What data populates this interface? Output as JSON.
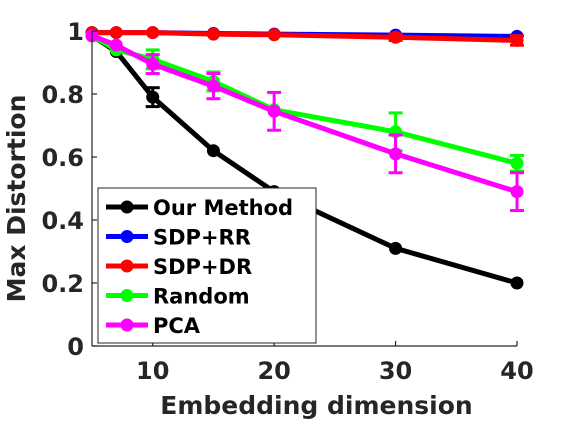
{
  "chart_data": {
    "type": "line",
    "title": "",
    "xlabel": "Embedding dimension",
    "ylabel": "Max Distortion",
    "xlim": [
      5,
      40
    ],
    "ylim": [
      0,
      1
    ],
    "xticks": [
      10,
      20,
      30,
      40
    ],
    "yticks": [
      0,
      0.2,
      0.4,
      0.6,
      0.8,
      1
    ],
    "ytick_labels": [
      "0",
      "0.2",
      "0.4",
      "0.6",
      "0.8",
      "1"
    ],
    "grid": false,
    "legend_position": "bottom-left",
    "series": [
      {
        "name": "Our Method",
        "color": "#000000",
        "x": [
          5,
          7,
          10,
          15,
          20,
          30,
          40
        ],
        "y": [
          0.985,
          0.935,
          0.79,
          0.62,
          0.49,
          0.31,
          0.2
        ],
        "err": [
          0,
          0,
          0.03,
          0,
          0,
          0,
          0
        ]
      },
      {
        "name": "SDP+RR",
        "color": "#0000ff",
        "x": [
          5,
          7,
          10,
          15,
          20,
          30,
          40
        ],
        "y": [
          0.995,
          0.995,
          0.995,
          0.992,
          0.99,
          0.987,
          0.983
        ],
        "err": [
          0,
          0,
          0,
          0,
          0,
          0,
          0
        ]
      },
      {
        "name": "SDP+DR",
        "color": "#ff0000",
        "x": [
          5,
          7,
          10,
          15,
          20,
          30,
          40
        ],
        "y": [
          0.995,
          0.995,
          0.995,
          0.99,
          0.988,
          0.98,
          0.97
        ],
        "err": [
          0,
          0,
          0,
          0,
          0,
          0.01,
          0.015
        ]
      },
      {
        "name": "Random",
        "color": "#00ff00",
        "x": [
          5,
          7,
          10,
          15,
          20,
          30,
          40
        ],
        "y": [
          0.985,
          0.94,
          0.91,
          0.84,
          0.75,
          0.68,
          0.58
        ],
        "err": [
          0,
          0,
          0.03,
          0.03,
          0,
          0.06,
          0.025
        ]
      },
      {
        "name": "PCA",
        "color": "#ff00ff",
        "x": [
          5,
          7,
          10,
          15,
          20,
          30,
          40
        ],
        "y": [
          0.985,
          0.955,
          0.895,
          0.825,
          0.745,
          0.61,
          0.49
        ],
        "err": [
          0,
          0,
          0.03,
          0.04,
          0.06,
          0.06,
          0.06
        ]
      }
    ]
  }
}
